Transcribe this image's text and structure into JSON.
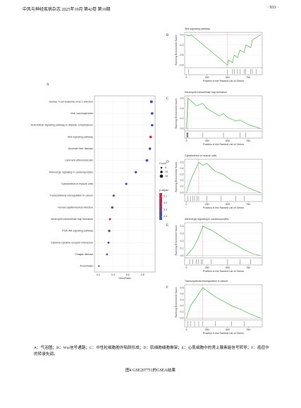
{
  "header": {
    "journal": "中风与神经疾病杂志 2025年10月 第42卷 第10期",
    "page": "· 933 ·"
  },
  "chart_data": [
    {
      "type": "dot",
      "panel": "A",
      "x_label": "GeneRatio",
      "size_title": "Count",
      "color_title": "p.adjust",
      "categories": [
        "Human T-cell leukemia virus 1 infection",
        "Viral carcinogenesis",
        "AGE-RAGE signaling pathway in diabetic complications",
        "Wnt signaling pathway",
        "Alcoholic liver disease",
        "Lipid and atherosclerosis",
        "Adrenergic signaling in cardiomyocytes",
        "Cytoskeleton in muscle cells",
        "Transcriptional misregulation in cancer",
        "Human papillomavirus infection",
        "Neutrophil extracellular trap formation",
        "PI3K-Akt signaling pathway",
        "Cytokine-cytokine receptor interaction",
        "Chagas disease",
        "Amoebiasis"
      ],
      "values": [
        0.92,
        0.93,
        0.93,
        0.91,
        0.9,
        0.86,
        0.71,
        0.58,
        0.41,
        0.39,
        0.36,
        0.35,
        0.34,
        0.32,
        0.21
      ],
      "counts": [
        12,
        11,
        10,
        10,
        10,
        11,
        9,
        8,
        8,
        9,
        7,
        9,
        7,
        6,
        4
      ],
      "p_adjust": [
        0.4,
        0.4,
        0.4,
        0.1,
        0.4,
        0.4,
        0.38,
        0.4,
        0.4,
        0.38,
        0.15,
        0.4,
        0.4,
        0.4,
        0.4
      ],
      "xlim": [
        0.15,
        0.97
      ],
      "xticks": [
        0.2,
        0.4,
        0.6,
        0.8
      ],
      "size_ticks": [
        5,
        10,
        15
      ],
      "color_ticks": [
        0.1,
        0.2,
        0.3,
        0.4
      ],
      "color_lim": [
        0.05,
        0.45
      ],
      "colors": [
        "#e8213a",
        "#3b5ba8"
      ],
      "grid": true
    },
    {
      "type": "line",
      "panel": "B",
      "title": "Wnt signaling pathway",
      "x_label": "Position in the Ranked List of Genes",
      "y_label": "Running Enrichment Score",
      "color": "#3aa33a",
      "x": [
        0,
        30,
        60,
        500,
        510,
        560,
        580,
        620,
        650,
        700,
        720,
        780,
        800,
        850,
        900
      ],
      "values": [
        0,
        -0.02,
        0,
        -0.6,
        -0.5,
        -0.55,
        -0.4,
        -0.45,
        -0.3,
        -0.35,
        -0.2,
        -0.25,
        -0.1,
        -0.05,
        0
      ],
      "hits": [
        30,
        500,
        560,
        580,
        620,
        650,
        700,
        720,
        780,
        800,
        850
      ],
      "xlim": [
        -20,
        920
      ],
      "xticks": [
        0,
        250,
        500,
        750
      ],
      "ylim": [
        -0.65,
        0.05
      ],
      "yticks": [
        {
          "value": 0,
          "label": "0.0"
        },
        -0.2,
        -0.4,
        -0.6
      ]
    },
    {
      "type": "line",
      "panel": "C",
      "title": "Neutrophil extracellular trap formation",
      "x_label": "Position in the Ranked List of Genes",
      "y_label": "Running Enrichment Score",
      "color": "#3aa33a",
      "x": [
        0,
        10,
        20,
        60,
        120,
        200,
        250,
        400,
        450,
        500,
        600,
        650,
        750,
        900
      ],
      "values": [
        0,
        0.3,
        0.6,
        0.55,
        0.45,
        0.5,
        0.4,
        0.25,
        0.3,
        0.22,
        0.15,
        0.17,
        0.08,
        0
      ],
      "hits": [
        5,
        10,
        15,
        20,
        200,
        450,
        650,
        720
      ],
      "xlim": [
        -20,
        920
      ],
      "xticks": [
        0,
        250,
        500,
        750
      ],
      "ylim": [
        -0.05,
        0.65
      ],
      "yticks": [
        {
          "value": 0,
          "label": "0.0"
        },
        0.2,
        0.4,
        0.6
      ]
    },
    {
      "type": "line",
      "panel": "D",
      "title": "Cytoskeleton in muscle cells",
      "x_label": "Position in the Ranked List of Genes",
      "y_label": "Running Enrichment Score",
      "color": "#3aa33a",
      "x": [
        0,
        50,
        100,
        150,
        200,
        250,
        350,
        450,
        550,
        650,
        750,
        900
      ],
      "values": [
        0,
        0.2,
        0.35,
        0.5,
        0.45,
        0.48,
        0.35,
        0.3,
        0.2,
        0.15,
        0.08,
        0
      ],
      "hits": [
        20,
        50,
        80,
        100,
        130,
        150,
        250,
        420,
        600,
        700
      ],
      "xlim": [
        -20,
        920
      ],
      "xticks": [
        0,
        250,
        500,
        750
      ],
      "ylim": [
        -0.03,
        0.55
      ],
      "yticks": [
        {
          "value": 0,
          "label": "0.0"
        },
        0.1,
        0.2,
        0.3,
        0.4,
        0.5
      ]
    },
    {
      "type": "line",
      "panel": "E",
      "title": "Adrenergic signaling in cardiomyocytes",
      "x_label": "Position in the Ranked List of Genes",
      "y_label": "Running Enrichment Score",
      "color": "#3aa33a",
      "x": [
        0,
        80,
        150,
        200,
        300,
        400,
        500,
        600,
        700,
        800,
        900
      ],
      "values": [
        0,
        0.1,
        0.25,
        0.4,
        0.35,
        0.28,
        0.2,
        0.15,
        0.08,
        0.03,
        0
      ],
      "hits": [
        40,
        80,
        120,
        150,
        180,
        200,
        300,
        500,
        650,
        780
      ],
      "xlim": [
        -20,
        920
      ],
      "xticks": [
        0,
        250,
        500,
        750
      ],
      "ylim": [
        -0.03,
        0.45
      ],
      "yticks": [
        {
          "value": 0,
          "label": "0.0"
        },
        0.1,
        0.2,
        0.3,
        0.4
      ]
    },
    {
      "type": "line",
      "panel": "F",
      "title": "Transcriptional misregulation in cancer",
      "x_label": "Position in the Ranked List of Genes",
      "y_label": "Running Enrichment Score",
      "color": "#3aa33a",
      "x": [
        0,
        50,
        150,
        200,
        250,
        350,
        450,
        550,
        650,
        750,
        900
      ],
      "values": [
        0,
        0.2,
        0.4,
        0.5,
        0.45,
        0.35,
        0.28,
        0.2,
        0.15,
        0.08,
        0
      ],
      "hits": [
        20,
        50,
        100,
        150,
        200,
        350,
        550,
        700
      ],
      "xlim": [
        -20,
        920
      ],
      "xticks": [
        0,
        250,
        500,
        750
      ],
      "ylim": [
        -0.03,
        0.55
      ],
      "yticks": [
        {
          "value": 0,
          "label": "0.0"
        },
        0.1,
        0.2,
        0.3,
        0.4,
        0.5
      ]
    }
  ],
  "caption": {
    "note": "A：气泡图；B：Wnt信号通路；C：中性粒细胞胞外陷阱形成；D：肌细胞细胞骨架；E：心肌细胞中的肾上腺素能信号转导；F：癌症中的转录失调。",
    "title": "图4 GSE207751的GSEA结果"
  }
}
